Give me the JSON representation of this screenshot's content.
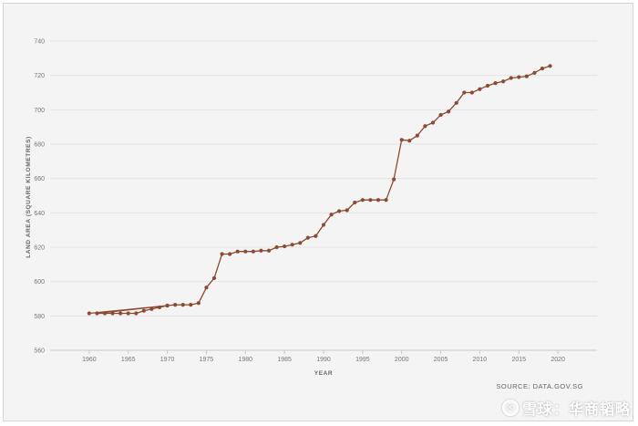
{
  "chart_data": {
    "type": "line",
    "title": "",
    "xlabel": "YEAR",
    "ylabel": "LAND AREA (SQUARE KILOMETRES)",
    "xlim": [
      1955,
      2025
    ],
    "ylim": [
      560,
      740
    ],
    "x_ticks": [
      1960,
      1965,
      1970,
      1975,
      1980,
      1985,
      1990,
      1995,
      2000,
      2005,
      2010,
      2015,
      2020
    ],
    "y_ticks": [
      560,
      580,
      600,
      620,
      640,
      660,
      680,
      700,
      720,
      740
    ],
    "grid": true,
    "color": "#8b4a32",
    "series": [
      {
        "x": [
          1960,
          1970,
          1961,
          1962,
          1963,
          1964,
          1965,
          1966,
          1967,
          1968,
          1969,
          1970,
          1971,
          1972,
          1973,
          1974,
          1975,
          1976,
          1977,
          1978,
          1979,
          1980,
          1981,
          1982,
          1983,
          1984,
          1985,
          1986,
          1987,
          1988,
          1989,
          1990,
          1991,
          1992,
          1993,
          1994,
          1995,
          1996,
          1997,
          1998,
          1999,
          2000,
          2001,
          2002,
          2003,
          2004,
          2005,
          2006,
          2007,
          2008,
          2009,
          2010,
          2011,
          2012,
          2013,
          2014,
          2015,
          2016,
          2017,
          2018,
          2019
        ],
        "y": [
          581.5,
          586.0,
          581.5,
          581.5,
          581.5,
          581.5,
          581.5,
          581.5,
          583.0,
          584.0,
          585.0,
          586.0,
          586.5,
          586.5,
          586.5,
          587.5,
          596.5,
          602.0,
          616.0,
          616.0,
          617.5,
          617.5,
          617.5,
          618.0,
          618.0,
          620.0,
          620.5,
          621.5,
          622.5,
          625.5,
          626.5,
          633.0,
          639.0,
          641.0,
          641.5,
          646.0,
          647.5,
          647.5,
          647.5,
          647.5,
          659.5,
          682.5,
          682.0,
          685.0,
          690.5,
          692.5,
          697.0,
          699.0,
          704.0,
          710.0,
          710.0,
          712.0,
          714.0,
          715.5,
          716.5,
          718.5,
          719.0,
          719.5,
          721.5,
          724.0,
          725.5
        ]
      }
    ]
  },
  "source": "SOURCE: DATA.GOV.SG",
  "watermark": {
    "logo_icon": "snowball-logo-icon",
    "text": "雪球：华商韬略"
  }
}
